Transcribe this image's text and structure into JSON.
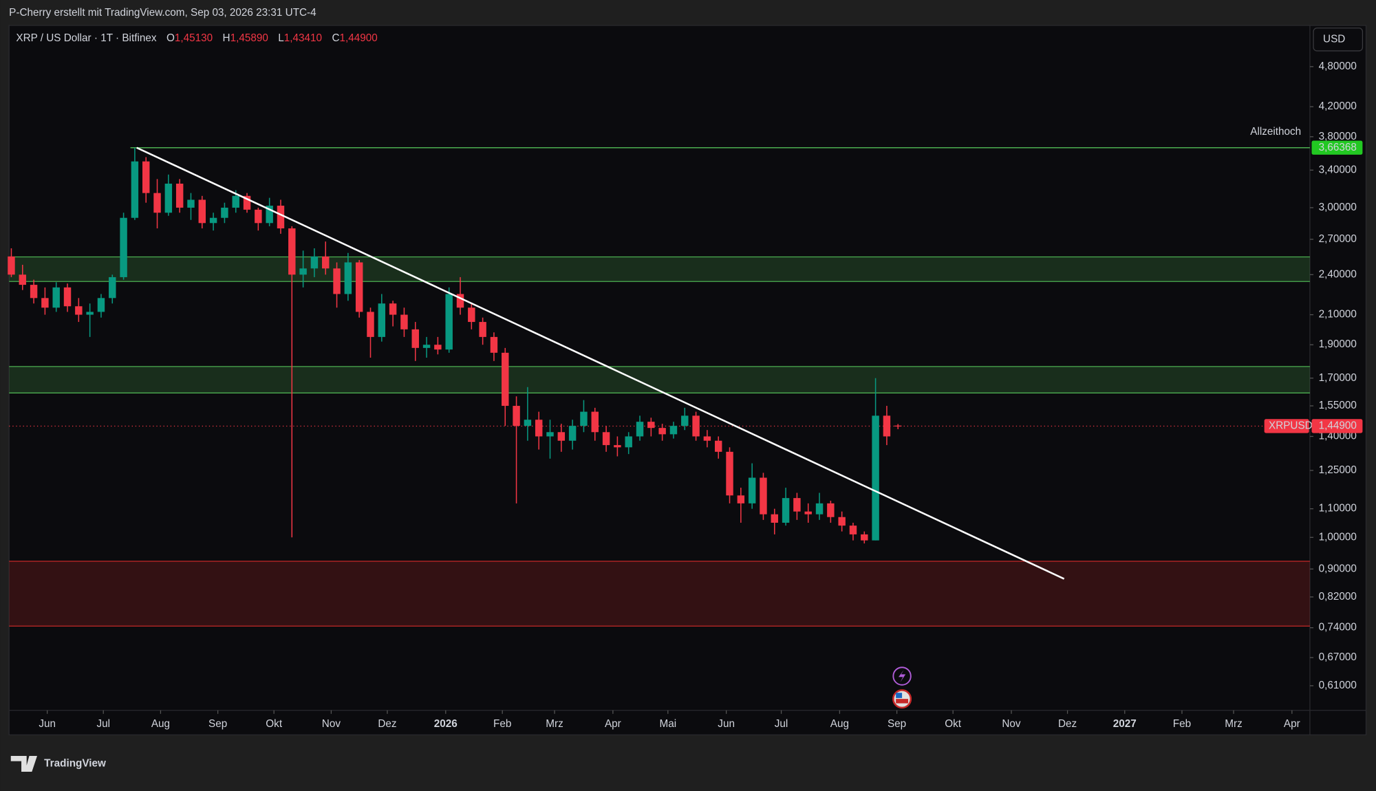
{
  "header": {
    "credit": "P-Cherry erstellt mit TradingView.com, Sep 03, 2026 23:31 UTC-4",
    "symbol": "XRP / US Dollar · 1T · Bitfinex",
    "ohlc": [
      {
        "key": "O",
        "value": "1,45130"
      },
      {
        "key": "H",
        "value": "1,45890"
      },
      {
        "key": "L",
        "value": "1,43410"
      },
      {
        "key": "C",
        "value": "1,44900"
      }
    ],
    "currency": "USD"
  },
  "footer": {
    "brand": "TradingView"
  },
  "chart_data": {
    "type": "candlestick",
    "up_color": "#089981",
    "down_color": "#f23645",
    "open": [
      2.55,
      2.4,
      2.32,
      2.22,
      2.15,
      2.3,
      2.16,
      2.1,
      2.12,
      2.22,
      2.38,
      2.9,
      3.5,
      3.15,
      2.95,
      3.25,
      3.0,
      3.08,
      2.85,
      2.9,
      3.0,
      3.12,
      2.98,
      2.85,
      3.02,
      2.8,
      2.4,
      2.45,
      2.55,
      2.45,
      2.25,
      2.5,
      2.12,
      1.95,
      2.18,
      2.1,
      2.0,
      1.88,
      1.9,
      1.87,
      2.25,
      2.15,
      2.05,
      1.95,
      1.85,
      1.55,
      1.45,
      1.48,
      1.4,
      1.42,
      1.38,
      1.45,
      1.52,
      1.42,
      1.36,
      1.35,
      1.4,
      1.47,
      1.44,
      1.41,
      1.45,
      1.5,
      1.4,
      1.38,
      1.33,
      1.15,
      1.12,
      1.22,
      1.08,
      1.05,
      1.14,
      1.09,
      1.08,
      1.12,
      1.07,
      1.04,
      1.01,
      0.99,
      1.5,
      1.4513
    ],
    "high": [
      2.62,
      2.48,
      2.36,
      2.3,
      2.34,
      2.33,
      2.22,
      2.18,
      2.25,
      2.4,
      2.95,
      3.66368,
      3.55,
      3.3,
      3.35,
      3.3,
      3.15,
      3.12,
      2.95,
      3.05,
      3.18,
      3.15,
      3.0,
      3.1,
      3.08,
      2.82,
      2.6,
      2.62,
      2.68,
      2.5,
      2.58,
      2.52,
      2.15,
      2.25,
      2.2,
      2.15,
      2.05,
      1.95,
      1.95,
      2.3,
      2.38,
      2.18,
      2.08,
      1.98,
      1.88,
      1.6,
      1.65,
      1.52,
      1.48,
      1.46,
      1.48,
      1.58,
      1.54,
      1.45,
      1.4,
      1.42,
      1.5,
      1.49,
      1.46,
      1.47,
      1.54,
      1.52,
      1.43,
      1.4,
      1.35,
      1.18,
      1.28,
      1.24,
      1.1,
      1.18,
      1.16,
      1.12,
      1.16,
      1.13,
      1.09,
      1.05,
      1.02,
      1.7,
      1.55,
      1.4589
    ],
    "low": [
      2.38,
      2.28,
      2.18,
      2.1,
      2.12,
      2.12,
      2.05,
      1.95,
      2.08,
      2.18,
      2.36,
      2.88,
      3.05,
      2.8,
      2.92,
      2.95,
      2.88,
      2.8,
      2.78,
      2.85,
      2.95,
      2.95,
      2.78,
      2.82,
      2.75,
      1.0,
      2.3,
      2.38,
      2.4,
      2.15,
      2.2,
      2.08,
      1.82,
      1.92,
      2.02,
      1.95,
      1.8,
      1.82,
      1.84,
      1.85,
      2.1,
      2.0,
      1.9,
      1.8,
      1.45,
      1.12,
      1.38,
      1.34,
      1.3,
      1.33,
      1.34,
      1.42,
      1.38,
      1.33,
      1.31,
      1.32,
      1.38,
      1.4,
      1.38,
      1.39,
      1.43,
      1.38,
      1.35,
      1.3,
      1.12,
      1.05,
      1.1,
      1.06,
      1.01,
      1.04,
      1.06,
      1.05,
      1.06,
      1.05,
      1.02,
      0.99,
      0.98,
      0.99,
      1.36,
      1.4341
    ],
    "close": [
      2.4,
      2.32,
      2.22,
      2.15,
      2.3,
      2.16,
      2.1,
      2.12,
      2.22,
      2.38,
      2.9,
      3.5,
      3.15,
      2.95,
      3.25,
      3.0,
      3.08,
      2.85,
      2.9,
      3.0,
      3.12,
      2.98,
      2.85,
      3.02,
      2.8,
      2.4,
      2.45,
      2.55,
      2.45,
      2.25,
      2.5,
      2.12,
      1.95,
      2.18,
      2.1,
      2.0,
      1.88,
      1.9,
      1.87,
      2.25,
      2.15,
      2.05,
      1.95,
      1.85,
      1.55,
      1.45,
      1.48,
      1.4,
      1.42,
      1.38,
      1.45,
      1.52,
      1.42,
      1.36,
      1.35,
      1.4,
      1.47,
      1.44,
      1.41,
      1.45,
      1.5,
      1.4,
      1.38,
      1.33,
      1.15,
      1.12,
      1.22,
      1.08,
      1.05,
      1.14,
      1.09,
      1.08,
      1.12,
      1.07,
      1.04,
      1.01,
      0.99,
      1.5,
      1.4,
      1.449
    ],
    "xlim": [
      -0.2,
      115.7
    ],
    "xticks": [
      {
        "value": 3.2,
        "label": "Jun"
      },
      {
        "value": 8.2,
        "label": "Jul"
      },
      {
        "value": 13.3,
        "label": "Aug"
      },
      {
        "value": 18.4,
        "label": "Sep"
      },
      {
        "value": 23.4,
        "label": "Okt"
      },
      {
        "value": 28.5,
        "label": "Nov"
      },
      {
        "value": 33.5,
        "label": "Dez"
      },
      {
        "value": 38.7,
        "label": "2026"
      },
      {
        "value": 43.75,
        "label": "Feb"
      },
      {
        "value": 48.4,
        "label": "Mrz"
      },
      {
        "value": 53.6,
        "label": "Apr"
      },
      {
        "value": 58.5,
        "label": "Mai"
      },
      {
        "value": 63.7,
        "label": "Jun"
      },
      {
        "value": 68.6,
        "label": "Jul"
      },
      {
        "value": 73.8,
        "label": "Aug"
      },
      {
        "value": 78.9,
        "label": "Sep"
      },
      {
        "value": 83.9,
        "label": "Okt"
      },
      {
        "value": 89.1,
        "label": "Nov"
      },
      {
        "value": 94.1,
        "label": "Dez"
      },
      {
        "value": 99.2,
        "label": "2027"
      },
      {
        "value": 104.3,
        "label": "Feb"
      },
      {
        "value": 108.9,
        "label": "Mrz"
      },
      {
        "value": 114.1,
        "label": "Apr"
      }
    ],
    "ylim": [
      0.562,
      5.49
    ],
    "log_scale": true,
    "grid": false,
    "yticks": [
      {
        "value": 4.8,
        "label": "4,80000"
      },
      {
        "value": 4.2,
        "label": "4,20000"
      },
      {
        "value": 3.8,
        "label": "3,80000"
      },
      {
        "value": 3.4,
        "label": "3,40000"
      },
      {
        "value": 3.0,
        "label": "3,00000"
      },
      {
        "value": 2.7,
        "label": "2,70000"
      },
      {
        "value": 2.4,
        "label": "2,40000"
      },
      {
        "value": 2.1,
        "label": "2,10000"
      },
      {
        "value": 1.9,
        "label": "1,90000"
      },
      {
        "value": 1.7,
        "label": "1,70000"
      },
      {
        "value": 1.55,
        "label": "1,55000"
      },
      {
        "value": 1.4,
        "label": "1,40000"
      },
      {
        "value": 1.25,
        "label": "1,25000"
      },
      {
        "value": 1.1,
        "label": "1,10000"
      },
      {
        "value": 1.0,
        "label": "1,00000"
      },
      {
        "value": 0.9,
        "label": "0,90000"
      },
      {
        "value": 0.82,
        "label": "0,82000"
      },
      {
        "value": 0.74,
        "label": "0,74000"
      },
      {
        "value": 0.67,
        "label": "0,67000"
      },
      {
        "value": 0.61,
        "label": "0,61000"
      }
    ],
    "zones": [
      {
        "low": 2.346,
        "high": 2.546,
        "color": "#4caf50"
      },
      {
        "low": 1.618,
        "high": 1.767,
        "color": "#4caf50"
      },
      {
        "low": 0.744,
        "high": 0.9236,
        "color": "#c62828"
      }
    ],
    "trendline": {
      "x": [
        11.17,
        93.8
      ],
      "y": [
        3.66368,
        0.871
      ],
      "color": "#ffffff"
    },
    "ath": {
      "value": 3.66368,
      "label": "3,66368",
      "text": "Allzeithoch",
      "color": "#4caf50",
      "badge_color": "#22c822"
    },
    "last_price": {
      "value": 1.449,
      "label": "1,44900",
      "symbol": "XRPUSD",
      "color": "#f23645"
    }
  }
}
